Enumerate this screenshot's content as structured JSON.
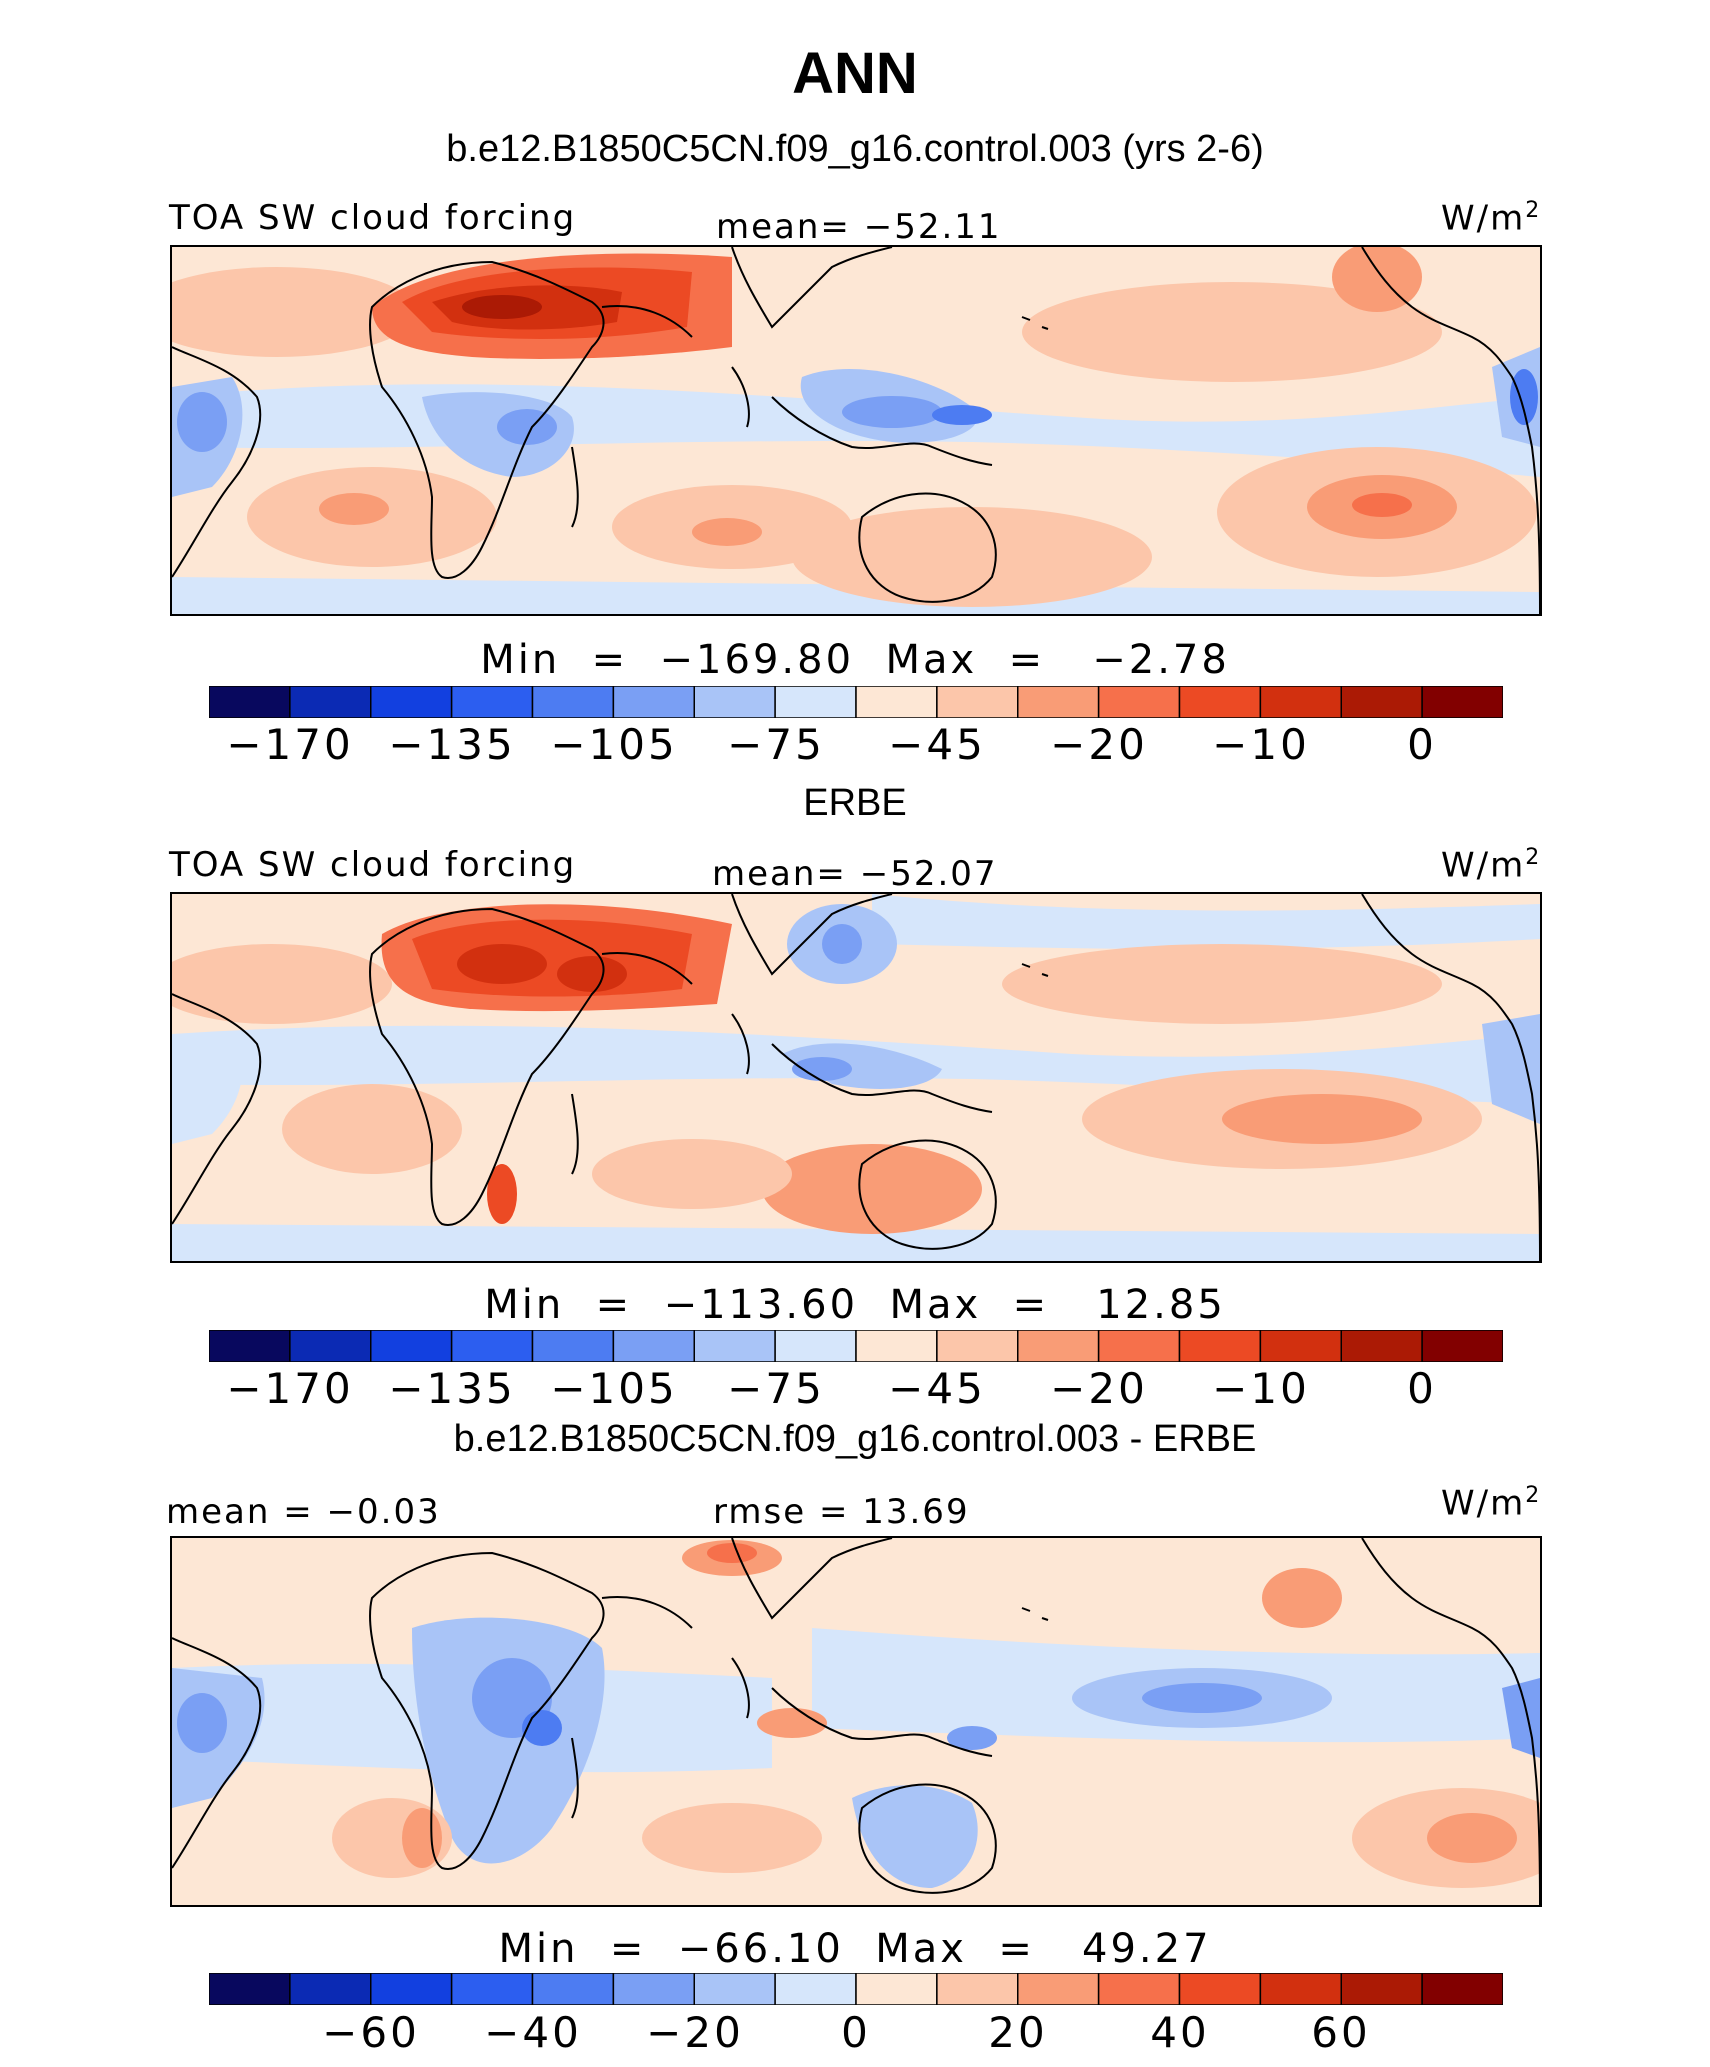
{
  "title": "ANN",
  "panels": [
    {
      "heading": "b.e12.B1850C5CN.f09_g16.control.003 (yrs 2-6)",
      "left_label": "TOA SW cloud forcing",
      "center_label": "mean=  −52.11",
      "units": "W/m",
      "units_sup": "2",
      "minmax": "Min  =  −169.80  Max  =   −2.78",
      "colorbar_ticks": [
        "−170",
        "−135",
        "−105",
        "−75",
        "−45",
        "−20",
        "−10",
        "0"
      ]
    },
    {
      "heading": "ERBE",
      "left_label": "TOA SW cloud forcing",
      "center_label": "mean=  −52.07",
      "units": "W/m",
      "units_sup": "2",
      "minmax": "Min  =  −113.60  Max  =   12.85",
      "colorbar_ticks": [
        "−170",
        "−135",
        "−105",
        "−75",
        "−45",
        "−20",
        "−10",
        "0"
      ]
    },
    {
      "heading": "b.e12.B1850C5CN.f09_g16.control.003 - ERBE",
      "left_label": "mean  =   −0.03",
      "center_label": "rmse  =   13.69",
      "units": "W/m",
      "units_sup": "2",
      "minmax": "Min  =  −66.10  Max  =   49.27",
      "colorbar_ticks": [
        "−60",
        "−40",
        "−20",
        "0",
        "20",
        "40",
        "60"
      ]
    }
  ],
  "colors": {
    "colorbar": [
      "#08085e",
      "#0b2ab4",
      "#1240e0",
      "#2c5ef0",
      "#4d7cf2",
      "#7a9ff4",
      "#a9c4f7",
      "#d6e6fb",
      "#fde7d5",
      "#fcc6aa",
      "#f99c76",
      "#f6704b",
      "#ec4a24",
      "#d2300f",
      "#ab1a05",
      "#820000"
    ],
    "ocean_background": "#fde9d8",
    "coastline": "#000000"
  }
}
